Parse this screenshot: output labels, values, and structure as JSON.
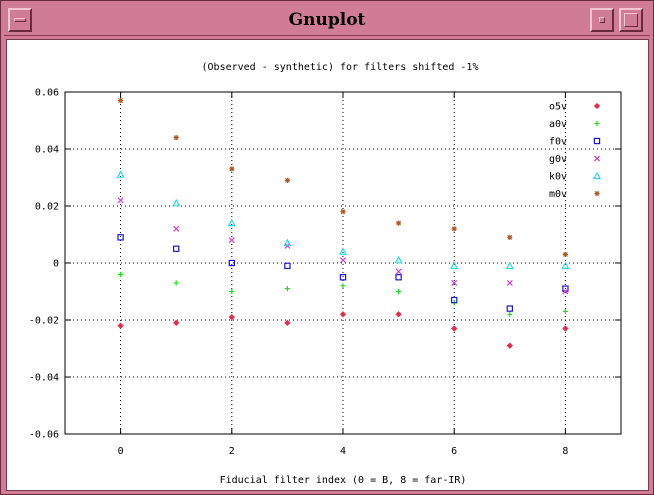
{
  "window": {
    "title": "Gnuplot",
    "icons": {
      "menu": "window-menu-icon",
      "minimize": "minimize-icon",
      "maximize": "maximize-icon"
    }
  },
  "chart_data": {
    "type": "scatter",
    "title": "(Observed - synthetic) for filters shifted -1%",
    "xlabel": "Fiducial filter index (0 = B, 8 = far-IR)",
    "ylabel": "",
    "xlim": [
      -1,
      9
    ],
    "ylim": [
      -0.06,
      0.06
    ],
    "x_ticks": [
      0,
      2,
      4,
      6,
      8
    ],
    "y_ticks": [
      0.06,
      0.04,
      0.02,
      0,
      -0.02,
      -0.04,
      -0.06
    ],
    "x_tick_labels": [
      "0",
      "2",
      "4",
      "6",
      "8"
    ],
    "y_tick_labels": [
      "0.06",
      "0.04",
      "0.02",
      "0",
      "-0.02",
      "-0.04",
      "-0.06"
    ],
    "grid": true,
    "legend_position": "top-right",
    "x": [
      0,
      1,
      2,
      3,
      4,
      5,
      6,
      7,
      8
    ],
    "series": [
      {
        "name": "o5v",
        "marker": "diamond",
        "color": "#e0304c",
        "values": [
          -0.022,
          -0.021,
          -0.019,
          -0.021,
          -0.018,
          -0.018,
          -0.023,
          -0.029,
          -0.023
        ]
      },
      {
        "name": "a0v",
        "marker": "plus",
        "color": "#22dd22",
        "values": [
          -0.004,
          -0.007,
          -0.01,
          -0.009,
          -0.008,
          -0.01,
          -0.014,
          -0.018,
          -0.017
        ]
      },
      {
        "name": "f0v",
        "marker": "square",
        "color": "#1a1acc",
        "values": [
          0.009,
          0.005,
          0.0,
          -0.001,
          -0.005,
          -0.005,
          -0.013,
          -0.016,
          -0.009
        ]
      },
      {
        "name": "g0v",
        "marker": "cross",
        "color": "#d040d0",
        "values": [
          0.022,
          0.012,
          0.008,
          0.006,
          0.001,
          -0.003,
          -0.007,
          -0.007,
          -0.01
        ]
      },
      {
        "name": "k0v",
        "marker": "triangle",
        "color": "#22d8e8",
        "values": [
          0.031,
          0.021,
          0.014,
          0.007,
          0.004,
          0.001,
          -0.001,
          -0.001,
          -0.001
        ]
      },
      {
        "name": "m0v",
        "marker": "star",
        "color": "#b05a28",
        "values": [
          0.057,
          0.044,
          0.033,
          0.029,
          0.018,
          0.014,
          0.012,
          0.009,
          0.003
        ]
      }
    ]
  }
}
